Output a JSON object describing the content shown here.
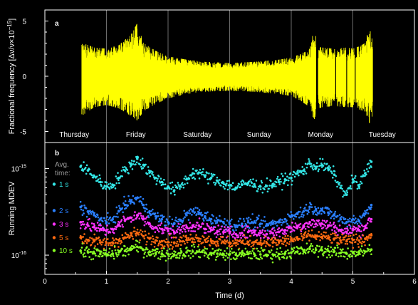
{
  "chart_data": [
    {
      "panel": "a",
      "type": "area",
      "ylabel": "Fractional frequency [Δν/ν×10⁻¹⁵]",
      "ylabel_main": "Fractional frequency [Δν/ν×10",
      "ylabel_exp": "−15",
      "ylabel_end": "]",
      "xlim": [
        0,
        6
      ],
      "ylim": [
        -6,
        6
      ],
      "yticks": [
        {
          "v": -5,
          "label": "-5"
        },
        {
          "v": 0,
          "label": "0"
        },
        {
          "v": 5,
          "label": "5"
        }
      ],
      "day_boundaries": [
        1,
        2,
        3,
        4,
        5
      ],
      "day_labels": [
        {
          "x": 0.5,
          "label": "Thursday"
        },
        {
          "x": 1.5,
          "label": "Friday"
        },
        {
          "x": 2.5,
          "label": "Saturday"
        },
        {
          "x": 3.5,
          "label": "Sunday"
        },
        {
          "x": 4.5,
          "label": "Monday"
        },
        {
          "x": 5.5,
          "label": "Tuesday"
        }
      ],
      "series_color": "#ffff00",
      "envelope": {
        "x": [
          0.6,
          0.62,
          0.8,
          1.0,
          1.2,
          1.4,
          1.5,
          1.6,
          1.8,
          2.0,
          2.3,
          2.6,
          3.0,
          3.4,
          3.8,
          4.0,
          4.15,
          4.3,
          4.38,
          4.42,
          4.5,
          4.7,
          4.9,
          5.0,
          5.1,
          5.2,
          5.28,
          5.32
        ],
        "upper": [
          3.4,
          3.0,
          2.6,
          2.5,
          2.8,
          3.8,
          4.8,
          3.0,
          2.3,
          1.8,
          1.5,
          1.3,
          1.2,
          1.3,
          1.5,
          1.7,
          2.0,
          2.5,
          4.5,
          2.8,
          2.6,
          2.5,
          2.6,
          2.5,
          2.7,
          3.0,
          4.8,
          3.5
        ],
        "lower": [
          -4.6,
          -3.5,
          -2.8,
          -2.6,
          -2.9,
          -3.6,
          -4.0,
          -3.2,
          -2.5,
          -2.0,
          -1.6,
          -1.4,
          -1.3,
          -1.4,
          -1.6,
          -1.8,
          -2.2,
          -2.8,
          -4.3,
          -3.0,
          -2.8,
          -2.7,
          -2.8,
          -2.8,
          -3.0,
          -3.2,
          -4.4,
          -3.5
        ]
      },
      "gaps": [
        [
          4.4,
          4.44
        ],
        [
          4.71,
          4.73
        ],
        [
          4.89,
          4.91
        ],
        [
          5.03,
          5.05
        ]
      ]
    },
    {
      "panel": "b",
      "type": "scatter",
      "xlabel": "Time (d)",
      "ylabel": "Running MDEV",
      "xlim": [
        0,
        6
      ],
      "ylim": [
        6e-17,
        2e-15
      ],
      "yscale": "log",
      "xticks": [
        0,
        1,
        2,
        3,
        4,
        5,
        6
      ],
      "yticks": [
        {
          "v": 1e-16,
          "base": "10",
          "exp": "-16"
        },
        {
          "v": 1e-15,
          "base": "10",
          "exp": "-15"
        }
      ],
      "legend_title": [
        "Avg.",
        "time:"
      ],
      "series": [
        {
          "name": "1 s",
          "color": "#33e6e6",
          "x": [
            0.58,
            0.7,
            0.8,
            0.9,
            1.0,
            1.1,
            1.2,
            1.3,
            1.4,
            1.5,
            1.6,
            1.7,
            1.8,
            1.9,
            2.0,
            2.1,
            2.2,
            2.3,
            2.4,
            2.5,
            2.6,
            2.7,
            2.8,
            2.9,
            3.0,
            3.1,
            3.2,
            3.3,
            3.4,
            3.5,
            3.6,
            3.7,
            3.8,
            3.9,
            4.0,
            4.1,
            4.2,
            4.3,
            4.4,
            4.5,
            4.6,
            4.7,
            4.8,
            4.9,
            5.0,
            5.1,
            5.2,
            5.3
          ],
          "y": [
            1.05e-15,
            9.5e-16,
            8.2e-16,
            7e-16,
            6.2e-16,
            6.5e-16,
            7.8e-16,
            9.5e-16,
            1.1e-15,
            1.3e-15,
            1.1e-15,
            9e-16,
            7.8e-16,
            7e-16,
            6.2e-16,
            5.6e-16,
            6.2e-16,
            7.5e-16,
            8.8e-16,
            9e-16,
            8.2e-16,
            7.8e-16,
            7.2e-16,
            6.8e-16,
            6.4e-16,
            6e-16,
            6.5e-16,
            6.8e-16,
            6.6e-16,
            6.2e-16,
            6.3e-16,
            6.6e-16,
            7e-16,
            7.5e-16,
            7.8e-16,
            8.8e-16,
            9.5e-16,
            1.15e-15,
            1.05e-15,
            1.1e-15,
            1e-15,
            8.5e-16,
            6e-16,
            5e-16,
            7.5e-16,
            6.2e-16,
            8.8e-16,
            1.2e-15
          ]
        },
        {
          "name": "2 s",
          "color": "#2a7fff",
          "x": [
            0.58,
            0.7,
            0.8,
            0.9,
            1.0,
            1.1,
            1.2,
            1.3,
            1.4,
            1.5,
            1.6,
            1.7,
            1.8,
            1.9,
            2.0,
            2.1,
            2.2,
            2.3,
            2.4,
            2.5,
            2.6,
            2.7,
            2.8,
            2.9,
            3.0,
            3.1,
            3.2,
            3.3,
            3.4,
            3.5,
            3.6,
            3.7,
            3.8,
            3.9,
            4.0,
            4.1,
            4.2,
            4.3,
            4.4,
            4.5,
            4.6,
            4.7,
            4.8,
            4.9,
            5.0,
            5.1,
            5.2,
            5.3
          ],
          "y": [
            3.6e-16,
            3.2e-16,
            2.9e-16,
            2.6e-16,
            2.4e-16,
            2.6e-16,
            3.2e-16,
            3.8e-16,
            4.2e-16,
            4.6e-16,
            3.8e-16,
            3.2e-16,
            2.8e-16,
            2.6e-16,
            2.4e-16,
            2.3e-16,
            2.5e-16,
            2.9e-16,
            3.2e-16,
            3.1e-16,
            2.8e-16,
            2.6e-16,
            2.5e-16,
            2.4e-16,
            2.3e-16,
            2.2e-16,
            2.3e-16,
            2.4e-16,
            2.4e-16,
            2.3e-16,
            2.2e-16,
            2.3e-16,
            2.4e-16,
            2.6e-16,
            2.8e-16,
            3e-16,
            3.2e-16,
            3.6e-16,
            3.4e-16,
            3.3e-16,
            3.1e-16,
            2.9e-16,
            2.6e-16,
            2.4e-16,
            2.6e-16,
            2.5e-16,
            3e-16,
            3.8e-16
          ]
        },
        {
          "name": "3 s",
          "color": "#ff33ff",
          "x": [
            0.58,
            0.7,
            0.8,
            0.9,
            1.0,
            1.1,
            1.2,
            1.3,
            1.4,
            1.5,
            1.6,
            1.7,
            1.8,
            1.9,
            2.0,
            2.1,
            2.2,
            2.3,
            2.4,
            2.5,
            2.6,
            2.7,
            2.8,
            2.9,
            3.0,
            3.1,
            3.2,
            3.3,
            3.4,
            3.5,
            3.6,
            3.7,
            3.8,
            3.9,
            4.0,
            4.1,
            4.2,
            4.3,
            4.4,
            4.5,
            4.6,
            4.7,
            4.8,
            4.9,
            5.0,
            5.1,
            5.2,
            5.3
          ],
          "y": [
            2.4e-16,
            2.2e-16,
            2.1e-16,
            2e-16,
            1.9e-16,
            2e-16,
            2.2e-16,
            2.5e-16,
            2.7e-16,
            2.9e-16,
            2.6e-16,
            2.3e-16,
            2.1e-16,
            2e-16,
            1.9e-16,
            1.85e-16,
            1.95e-16,
            2.1e-16,
            2.2e-16,
            2.2e-16,
            2e-16,
            1.95e-16,
            1.9e-16,
            1.85e-16,
            1.8e-16,
            1.75e-16,
            1.8e-16,
            1.85e-16,
            1.85e-16,
            1.8e-16,
            1.75e-16,
            1.8e-16,
            1.85e-16,
            1.95e-16,
            2.05e-16,
            2.15e-16,
            2.2e-16,
            2.4e-16,
            2.3e-16,
            2.3e-16,
            2.2e-16,
            2.1e-16,
            1.95e-16,
            1.85e-16,
            2e-16,
            1.95e-16,
            2.15e-16,
            2.6e-16
          ]
        },
        {
          "name": "5 s",
          "color": "#ff6a10",
          "x": [
            0.58,
            0.7,
            0.8,
            0.9,
            1.0,
            1.1,
            1.2,
            1.3,
            1.4,
            1.5,
            1.6,
            1.7,
            1.8,
            1.9,
            2.0,
            2.1,
            2.2,
            2.3,
            2.4,
            2.5,
            2.6,
            2.7,
            2.8,
            2.9,
            3.0,
            3.1,
            3.2,
            3.3,
            3.4,
            3.5,
            3.6,
            3.7,
            3.8,
            3.9,
            4.0,
            4.1,
            4.2,
            4.3,
            4.4,
            4.5,
            4.6,
            4.7,
            4.8,
            4.9,
            5.0,
            5.1,
            5.2,
            5.3
          ],
          "y": [
            1.6e-16,
            1.5e-16,
            1.45e-16,
            1.4e-16,
            1.38e-16,
            1.4e-16,
            1.5e-16,
            1.6e-16,
            1.7e-16,
            1.8e-16,
            1.65e-16,
            1.55e-16,
            1.48e-16,
            1.45e-16,
            1.42e-16,
            1.4e-16,
            1.45e-16,
            1.5e-16,
            1.55e-16,
            1.55e-16,
            1.5e-16,
            1.46e-16,
            1.43e-16,
            1.42e-16,
            1.4e-16,
            1.38e-16,
            1.4e-16,
            1.42e-16,
            1.42e-16,
            1.4e-16,
            1.38e-16,
            1.4e-16,
            1.42e-16,
            1.46e-16,
            1.5e-16,
            1.55e-16,
            1.6e-16,
            1.7e-16,
            1.65e-16,
            1.62e-16,
            1.58e-16,
            1.55e-16,
            1.48e-16,
            1.45e-16,
            1.5e-16,
            1.48e-16,
            1.55e-16,
            1.7e-16
          ]
        },
        {
          "name": "10 s",
          "color": "#88ff22",
          "x": [
            0.58,
            0.7,
            0.8,
            0.9,
            1.0,
            1.1,
            1.2,
            1.3,
            1.4,
            1.5,
            1.6,
            1.7,
            1.8,
            1.9,
            2.0,
            2.1,
            2.2,
            2.3,
            2.4,
            2.5,
            2.6,
            2.7,
            2.8,
            2.9,
            3.0,
            3.1,
            3.2,
            3.3,
            3.4,
            3.5,
            3.6,
            3.7,
            3.8,
            3.9,
            4.0,
            4.1,
            4.2,
            4.3,
            4.4,
            4.5,
            4.6,
            4.7,
            4.8,
            4.9,
            5.0,
            5.1,
            5.2,
            5.3
          ],
          "y": [
            1.12e-16,
            1.08e-16,
            1.05e-16,
            1.03e-16,
            1.02e-16,
            1.04e-16,
            1.08e-16,
            1.12e-16,
            1.18e-16,
            1.25e-16,
            1.15e-16,
            1.1e-16,
            1.06e-16,
            1.04e-16,
            1.03e-16,
            1.02e-16,
            1.05e-16,
            1.08e-16,
            1.1e-16,
            1.1e-16,
            1.07e-16,
            1.05e-16,
            1.04e-16,
            1.03e-16,
            1.02e-16,
            1.01e-16,
            1.02e-16,
            1.03e-16,
            1.03e-16,
            1.02e-16,
            1.01e-16,
            1.02e-16,
            1.03e-16,
            1.05e-16,
            1.07e-16,
            1.1e-16,
            1.12e-16,
            1.18e-16,
            1.15e-16,
            1.14e-16,
            1.12e-16,
            1.1e-16,
            1.06e-16,
            1.04e-16,
            1.07e-16,
            1.06e-16,
            1.1e-16,
            1.16e-16
          ]
        }
      ]
    }
  ]
}
